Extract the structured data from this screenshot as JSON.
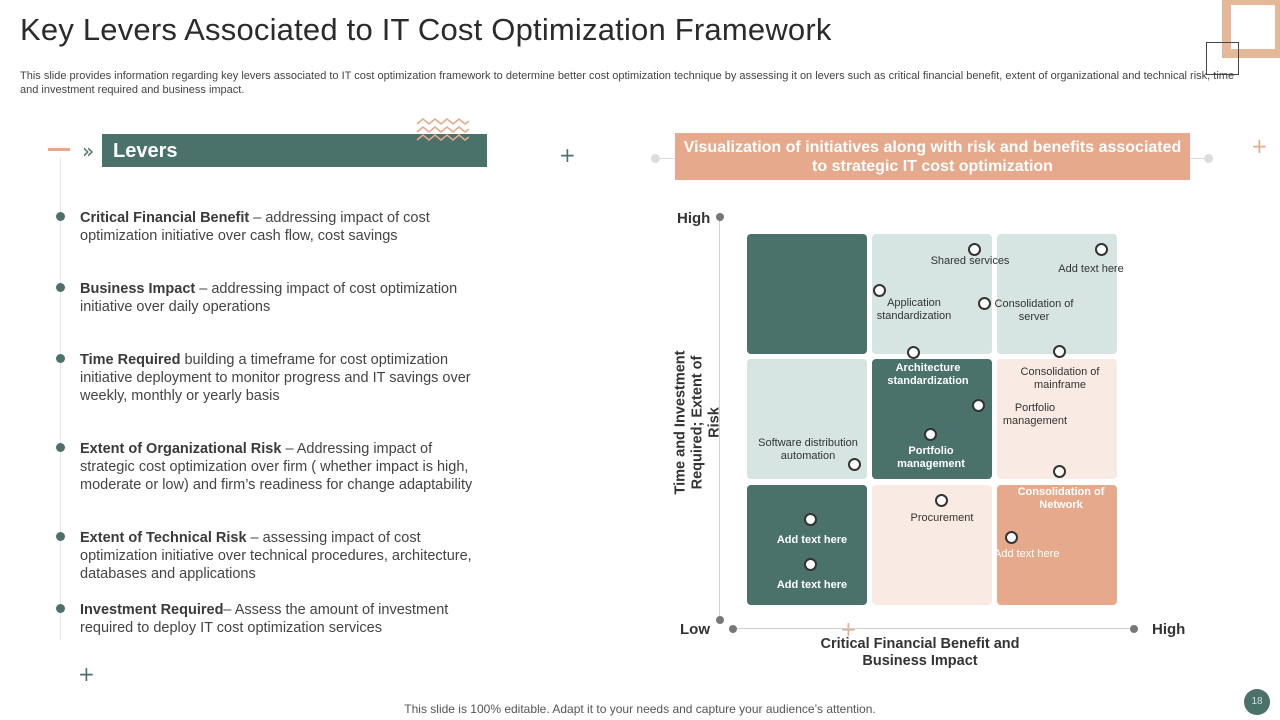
{
  "title": "Key Levers Associated to IT Cost Optimization Framework",
  "subtitle": "This slide provides information regarding key levers associated to IT cost optimization framework to determine better cost optimization technique by assessing it on levers such as critical financial benefit, extent of organizational and technical risk, time and investment required and business impact.",
  "levers": {
    "heading": "Levers",
    "items": [
      {
        "name": "Critical Financial Benefit",
        "text": " – addressing impact of cost optimization initiative over cash flow, cost savings"
      },
      {
        "name": "Business Impact",
        "text": " – addressing impact of cost optimization initiative over daily operations"
      },
      {
        "name": "Time Required",
        "text": " building a timeframe for cost optimization initiative deployment to monitor progress and IT savings over weekly, monthly or yearly basis"
      },
      {
        "name": "Extent of Organizational Risk",
        "text": " – Addressing impact of strategic cost optimization over firm ( whether impact is high, moderate or low) and firm’s readiness for change adaptability"
      },
      {
        "name": "Extent of Technical Risk",
        "text": " – assessing impact of cost optimization initiative over technical procedures, architecture, databases and applications"
      },
      {
        "name": "Investment Required",
        "text": "– Assess the amount of investment required to deploy IT cost optimization services"
      }
    ]
  },
  "matrix": {
    "header": "Visualization of initiatives along with risk and benefits associated to strategic IT cost optimization",
    "y_high": "High",
    "low": "Low",
    "x_high": "High",
    "y_title": "Time and Investment Required; Extent of Risk",
    "x_title": "Critical Financial Benefit and Business Impact",
    "labels": {
      "shared_services": "Shared services",
      "add_text_top": "Add text here",
      "application_standardization": "Application standardization",
      "consolidation_server": "Consolidation of server",
      "architecture_standardization": "Architecture standardization",
      "consolidation_mainframe": "Consolidation of mainframe",
      "portfolio_management_right": "Portfolio management",
      "software_distribution": "Software distribution automation",
      "portfolio_management_center": "Portfolio management",
      "procurement": "Procurement",
      "consolidation_network": "Consolidation of Network",
      "add_text_bottom_left_1": "Add text here",
      "add_text_bottom_left_2": "Add text here",
      "add_text_bottom_right": "Add text here"
    },
    "colors": {
      "dark": "#4a716a",
      "mint": "#d6e5e2",
      "pink": "#f9eae3",
      "peach": "#e6a98b"
    }
  },
  "footer": "This slide is 100% editable. Adapt it to your needs and capture your audience’s attention.",
  "page_number": "18"
}
